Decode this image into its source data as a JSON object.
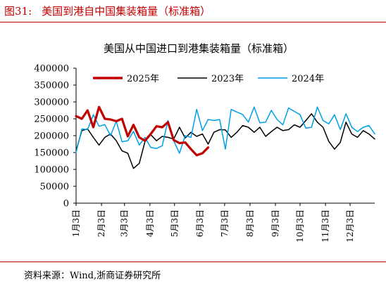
{
  "figure": {
    "number": "图31:",
    "title": "美国到港自中国集装箱量（标准箱）"
  },
  "source": "资料来源：Wind,浙商证券研究所",
  "chart_data": {
    "type": "line",
    "title": "美国从中国进口到港集装箱量（标准箱）",
    "xlabel": "",
    "ylabel": "",
    "ylim": [
      0,
      400000
    ],
    "yticks": [
      0,
      50000,
      100000,
      150000,
      200000,
      250000,
      300000,
      350000,
      400000
    ],
    "ytick_labels": [
      "0",
      "50000",
      "100000",
      "150000",
      "200000",
      "250000",
      "300000",
      "350000",
      "400000"
    ],
    "x_unit": "week",
    "xlim": [
      0,
      52
    ],
    "xticks": [
      {
        "label": "1月3日",
        "week": 0
      },
      {
        "label": "2月3日",
        "week": 4.43
      },
      {
        "label": "3月3日",
        "week": 8.43
      },
      {
        "label": "4月3日",
        "week": 12.86
      },
      {
        "label": "5月3日",
        "week": 17.14
      },
      {
        "label": "6月3日",
        "week": 21.57
      },
      {
        "label": "7月3日",
        "week": 25.86
      },
      {
        "label": "8月3日",
        "week": 30.29
      },
      {
        "label": "9月3日",
        "week": 34.71
      },
      {
        "label": "10月3日",
        "week": 39
      },
      {
        "label": "11月3日",
        "week": 43.43
      },
      {
        "label": "12月3日",
        "week": 47.71
      }
    ],
    "grid": false,
    "legend_position": "top",
    "series": [
      {
        "name": "2025年",
        "color": "#c00000",
        "x": [
          0,
          1,
          2,
          3,
          4,
          5,
          6,
          7,
          8,
          9,
          10,
          11,
          12,
          13,
          14,
          15,
          16,
          17,
          18,
          19,
          20,
          21,
          22,
          23
        ],
        "values": [
          258000,
          250000,
          275000,
          225000,
          285000,
          250000,
          248000,
          243000,
          250000,
          198000,
          232000,
          195000,
          185000,
          205000,
          228000,
          225000,
          240000,
          187000,
          178000,
          180000,
          160000,
          142000,
          148000,
          165000
        ]
      },
      {
        "name": "2023年",
        "color": "#000000",
        "x": [
          0,
          1,
          2,
          3,
          4,
          5,
          6,
          7,
          8,
          9,
          10,
          11,
          12,
          13,
          14,
          15,
          16,
          17,
          18,
          19,
          20,
          21,
          22,
          23,
          24,
          25,
          26,
          27,
          28,
          29,
          30,
          31,
          32,
          33,
          34,
          35,
          36,
          37,
          38,
          39,
          40,
          41,
          42,
          43,
          44,
          45,
          46,
          47,
          48,
          49,
          50,
          51,
          52
        ],
        "values": [
          155000,
          215000,
          220000,
          195000,
          172000,
          195000,
          205000,
          185000,
          155000,
          148000,
          103000,
          118000,
          182000,
          203000,
          185000,
          198000,
          195000,
          190000,
          225000,
          193000,
          210000,
          198000,
          205000,
          175000,
          210000,
          218000,
          217000,
          195000,
          210000,
          230000,
          225000,
          210000,
          225000,
          198000,
          212000,
          225000,
          215000,
          218000,
          232000,
          225000,
          245000,
          265000,
          240000,
          225000,
          183000,
          160000,
          180000,
          240000,
          205000,
          195000,
          215000,
          205000,
          190000
        ]
      },
      {
        "name": "2024年",
        "color": "#00a0e9",
        "x": [
          0,
          1,
          2,
          3,
          4,
          5,
          6,
          7,
          8,
          9,
          10,
          11,
          12,
          13,
          14,
          15,
          16,
          17,
          18,
          19,
          20,
          21,
          22,
          23,
          24,
          25,
          26,
          27,
          28,
          29,
          30,
          31,
          32,
          33,
          34,
          35,
          36,
          37,
          38,
          39,
          40,
          41,
          42,
          43,
          44,
          45,
          46,
          47,
          48,
          49,
          50,
          51,
          52
        ],
        "values": [
          150000,
          220000,
          218000,
          262000,
          228000,
          233000,
          200000,
          243000,
          182000,
          185000,
          213000,
          172000,
          195000,
          165000,
          162000,
          170000,
          245000,
          185000,
          148000,
          200000,
          195000,
          278000,
          215000,
          248000,
          245000,
          248000,
          160000,
          278000,
          270000,
          263000,
          240000,
          285000,
          238000,
          240000,
          275000,
          248000,
          232000,
          282000,
          272000,
          262000,
          222000,
          225000,
          285000,
          245000,
          235000,
          262000,
          218000,
          265000,
          225000,
          212000,
          225000,
          230000,
          205000
        ]
      }
    ]
  }
}
